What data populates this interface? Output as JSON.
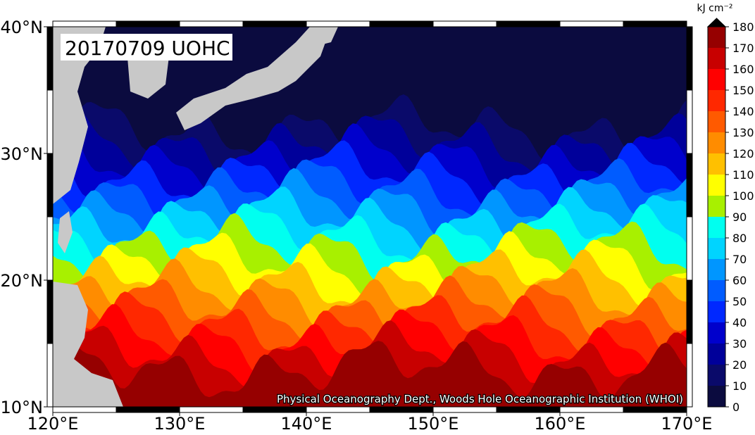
{
  "title": "20170709 UOHC",
  "credit": "Physical Oceanography Dept., Woods Hole Oceanographic Institution (WHOI)",
  "map": {
    "xlim": [
      120,
      170
    ],
    "ylim": [
      10,
      40
    ],
    "xticks": [
      {
        "value": 120,
        "label": "120°E"
      },
      {
        "value": 130,
        "label": "130°E"
      },
      {
        "value": 140,
        "label": "140°E"
      },
      {
        "value": 150,
        "label": "150°E"
      },
      {
        "value": 160,
        "label": "160°E"
      },
      {
        "value": 170,
        "label": "170°E"
      }
    ],
    "yticks": [
      {
        "value": 10,
        "label": "10°N"
      },
      {
        "value": 20,
        "label": "20°N"
      },
      {
        "value": 30,
        "label": "30°N"
      },
      {
        "value": 40,
        "label": "40°N"
      }
    ]
  },
  "colorbar": {
    "label": "kJ cm⁻²",
    "ticks": [
      0,
      10,
      20,
      30,
      40,
      50,
      60,
      70,
      80,
      90,
      100,
      110,
      120,
      130,
      140,
      150,
      160,
      170,
      180
    ],
    "colors": [
      "#0b0b3f",
      "#0a0a6a",
      "#00009a",
      "#0000cc",
      "#0028ff",
      "#005cff",
      "#0096ff",
      "#00d4ff",
      "#00fff0",
      "#a8f000",
      "#ffff00",
      "#ffc000",
      "#ff8c00",
      "#ff5a00",
      "#ff2800",
      "#ff0000",
      "#c80000",
      "#960000"
    ],
    "extend_color": "#000000"
  }
}
